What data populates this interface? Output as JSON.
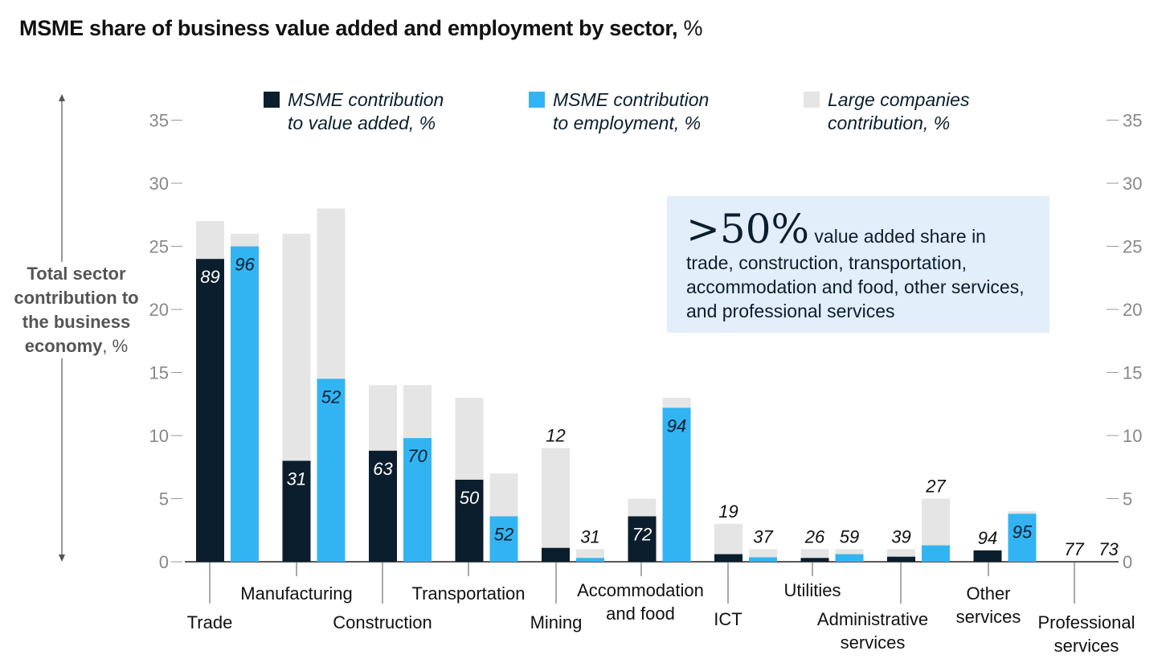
{
  "title": {
    "main": "MSME share of business value added and employment by sector,",
    "unit": " %"
  },
  "colors": {
    "msme_value": "#0b1e2d",
    "msme_employment": "#33b4f2",
    "large": "#e5e5e5",
    "callout_bg": "#e3eefb"
  },
  "legend": [
    {
      "label": "MSME contribution\nto value added, %",
      "color": "#0b1e2d"
    },
    {
      "label": "MSME contribution\nto employment, %",
      "color": "#33b4f2"
    },
    {
      "label": "Large companies\ncontribution, %",
      "color": "#e5e5e5"
    }
  ],
  "callout": {
    "big": ">50%",
    "text": " value added share in trade, construction, transportation, accommodation and food, other services, and professional services"
  },
  "yaxis_title": {
    "bold": "Total sector contribution to the business economy",
    "unit": ", %"
  },
  "chart_data": {
    "type": "bar",
    "ylim": [
      0,
      35
    ],
    "yticks": [
      0,
      5,
      10,
      15,
      20,
      25,
      30,
      35
    ],
    "categories": [
      "Trade",
      "Manufacturing",
      "Construction",
      "Transportation",
      "Mining",
      "Accommodation and food",
      "ICT",
      "Utilities",
      "Administrative services",
      "Other services",
      "Professional services"
    ],
    "series": [
      {
        "name": "MSME contribution to value added, %",
        "total": [
          27,
          26,
          14,
          13,
          9,
          5,
          3,
          1,
          1,
          0.9,
          0
        ],
        "msme": [
          24,
          8,
          8.8,
          6.5,
          1.1,
          3.6,
          0.6,
          0.3,
          0.4,
          0.9,
          0
        ],
        "labels": [
          "89",
          "31",
          "63",
          "50",
          "12",
          "72",
          "19",
          "26",
          "39",
          "94",
          "77"
        ]
      },
      {
        "name": "MSME contribution to employment, %",
        "total": [
          26,
          28,
          14,
          7,
          1,
          13,
          1,
          1,
          5,
          4,
          0
        ],
        "msme": [
          25,
          14.5,
          9.8,
          3.6,
          0.3,
          12.2,
          0.35,
          0.6,
          1.3,
          3.8,
          0
        ],
        "labels": [
          "96",
          "52",
          "70",
          "52",
          "31",
          "94",
          "37",
          "59",
          "27",
          "95",
          "73"
        ]
      }
    ]
  }
}
